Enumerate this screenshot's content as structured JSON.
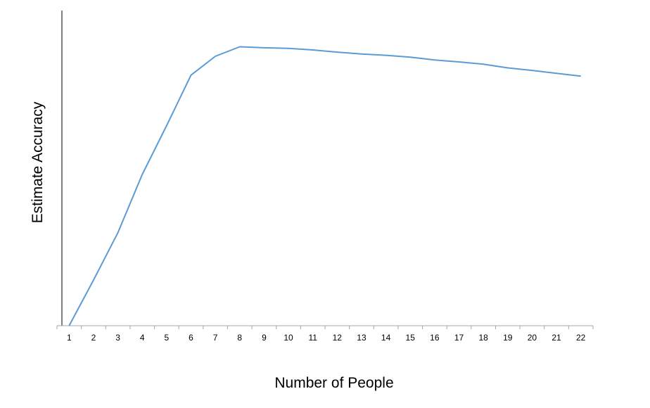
{
  "chart_data": {
    "type": "line",
    "title": "",
    "xlabel": "Number of People",
    "ylabel": "Estimate Accuracy",
    "categories": [
      "1",
      "2",
      "3",
      "4",
      "5",
      "6",
      "7",
      "8",
      "9",
      "10",
      "11",
      "12",
      "13",
      "14",
      "15",
      "16",
      "17",
      "18",
      "19",
      "20",
      "21",
      "22"
    ],
    "series": [
      {
        "values": [
          0,
          14.5,
          29.5,
          48,
          63.5,
          79.5,
          85.5,
          88.5,
          88.2,
          88,
          87.5,
          86.8,
          86.2,
          85.8,
          85.2,
          84.3,
          83.7,
          83,
          81.8,
          81,
          80.1,
          79.2
        ]
      }
    ],
    "ylim": [
      0,
      100
    ],
    "y_ticks_shown": false,
    "grid": false,
    "legend": "none",
    "line_color": "#5b9bd5",
    "axis_color": "#000000"
  }
}
